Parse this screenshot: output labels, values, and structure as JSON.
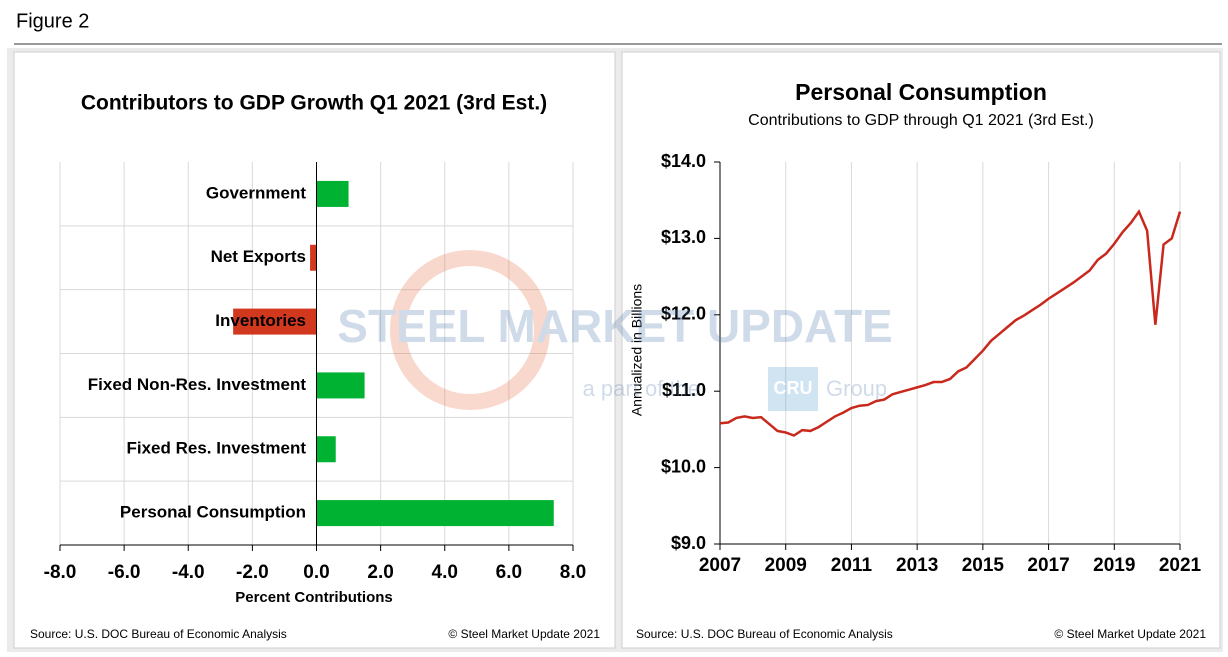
{
  "figure_label": "Figure 2",
  "watermark": {
    "text": "STEEL MARKET UPDATE",
    "tagline": "a part of the",
    "brand": "CRU",
    "group": "Group"
  },
  "chart_data": [
    {
      "type": "bar",
      "orientation": "horizontal",
      "title": "Contributors to GDP Growth Q1 2021 (3rd Est.)",
      "categories": [
        "Government",
        "Net Exports",
        "Inventories",
        "Fixed Non-Res. Investment",
        "Fixed Res. Investment",
        "Personal Consumption"
      ],
      "values": [
        1.0,
        -0.2,
        -2.6,
        1.5,
        0.6,
        7.4
      ],
      "colors": [
        "#00b232",
        "#d2381e",
        "#d2381e",
        "#00b232",
        "#00b232",
        "#00b232"
      ],
      "x_label": "Percent Contributions",
      "xlim": [
        -8,
        8
      ],
      "xticks": [
        {
          "value": -8,
          "label": "-8.0"
        },
        {
          "value": -6,
          "label": "-6.0"
        },
        {
          "value": -4,
          "label": "-4.0"
        },
        {
          "value": -2,
          "label": "-2.0"
        },
        {
          "value": 0,
          "label": "0.0"
        },
        {
          "value": 2,
          "label": "2.0"
        },
        {
          "value": 4,
          "label": "4.0"
        },
        {
          "value": 6,
          "label": "6.0"
        },
        {
          "value": 8,
          "label": "8.0"
        }
      ],
      "grid": true,
      "source": "Source: U.S. DOC Bureau of Economic Analysis",
      "credit": "© Steel Market Update 2021"
    },
    {
      "type": "line",
      "title": "Personal Consumption",
      "subtitle": "Contributions to GDP through Q1 2021 (3rd Est.)",
      "y_label": "Annualized in Billions",
      "x": [
        2007,
        2007.25,
        2007.5,
        2007.75,
        2008,
        2008.25,
        2008.5,
        2008.75,
        2009,
        2009.25,
        2009.5,
        2009.75,
        2010,
        2010.25,
        2010.5,
        2010.75,
        2011,
        2011.25,
        2011.5,
        2011.75,
        2012,
        2012.25,
        2012.5,
        2012.75,
        2013,
        2013.25,
        2013.5,
        2013.75,
        2014,
        2014.25,
        2014.5,
        2014.75,
        2015,
        2015.25,
        2015.5,
        2015.75,
        2016,
        2016.25,
        2016.5,
        2016.75,
        2017,
        2017.25,
        2017.5,
        2017.75,
        2018,
        2018.25,
        2018.5,
        2018.75,
        2019,
        2019.25,
        2019.5,
        2019.75,
        2020,
        2020.25,
        2020.5,
        2020.75,
        2021
      ],
      "series": [
        {
          "name": "Personal Consumption",
          "color": "#c9281c",
          "values": [
            10.58,
            10.59,
            10.65,
            10.67,
            10.65,
            10.66,
            10.57,
            10.48,
            10.46,
            10.42,
            10.49,
            10.48,
            10.53,
            10.6,
            10.67,
            10.72,
            10.78,
            10.81,
            10.82,
            10.87,
            10.89,
            10.96,
            10.99,
            11.02,
            11.05,
            11.08,
            11.12,
            11.12,
            11.16,
            11.26,
            11.31,
            11.42,
            11.53,
            11.66,
            11.75,
            11.84,
            11.93,
            11.99,
            12.06,
            12.13,
            12.21,
            12.28,
            12.35,
            12.42,
            12.5,
            12.58,
            12.72,
            12.8,
            12.93,
            13.08,
            13.2,
            13.35,
            13.1,
            11.87,
            12.92,
            13.0,
            13.35
          ]
        }
      ],
      "xlim": [
        2007,
        2021
      ],
      "xticks": [
        2007,
        2009,
        2011,
        2013,
        2015,
        2017,
        2019,
        2021
      ],
      "ylim": [
        9,
        14
      ],
      "yticks": [
        {
          "value": 9,
          "label": "$9.0"
        },
        {
          "value": 10,
          "label": "$10.0"
        },
        {
          "value": 11,
          "label": "$11.0"
        },
        {
          "value": 12,
          "label": "$12.0"
        },
        {
          "value": 13,
          "label": "$13.0"
        },
        {
          "value": 14,
          "label": "$14.0"
        }
      ],
      "grid": true,
      "source": "Source: U.S. DOC Bureau of Economic Analysis",
      "credit": "© Steel Market Update 2021"
    }
  ]
}
